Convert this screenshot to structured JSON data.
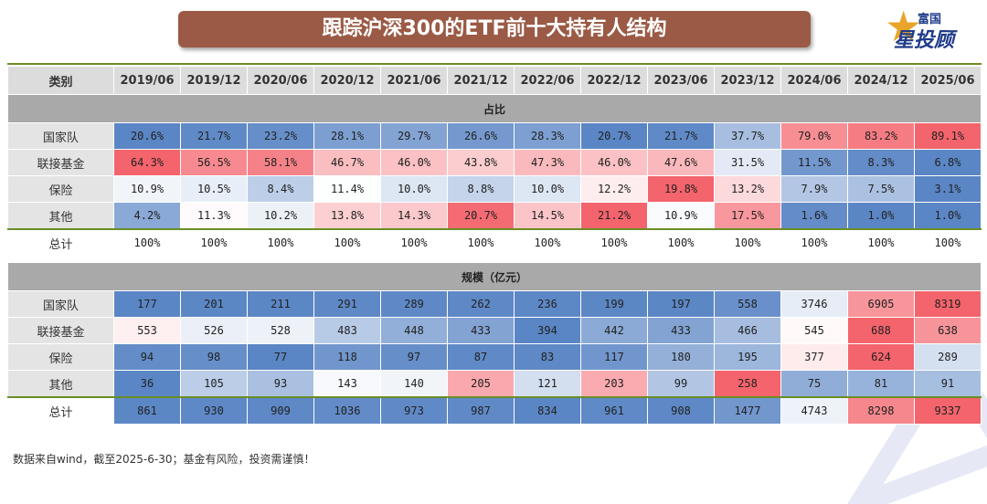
{
  "title": "跟踪沪深300的ETF前十大持有人结构",
  "logo": {
    "line1": "富国",
    "line2": "星投顾",
    "icon": "star-icon"
  },
  "columns": [
    "类别",
    "2019/06",
    "2019/12",
    "2020/06",
    "2020/12",
    "2021/06",
    "2021/12",
    "2022/06",
    "2022/12",
    "2023/06",
    "2023/12",
    "2024/06",
    "2024/12",
    "2025/06"
  ],
  "share_section": {
    "title": "占比",
    "rows": [
      {
        "label": "国家队",
        "values": [
          "20.6%",
          "21.7%",
          "23.2%",
          "28.1%",
          "29.7%",
          "26.6%",
          "28.3%",
          "20.7%",
          "21.7%",
          "37.7%",
          "79.0%",
          "83.2%",
          "89.1%"
        ]
      },
      {
        "label": "联接基金",
        "values": [
          "64.3%",
          "56.5%",
          "58.1%",
          "46.7%",
          "46.0%",
          "43.8%",
          "47.3%",
          "46.0%",
          "47.6%",
          "31.5%",
          "11.5%",
          "8.3%",
          "6.8%"
        ]
      },
      {
        "label": "保险",
        "values": [
          "10.9%",
          "10.5%",
          "8.4%",
          "11.4%",
          "10.0%",
          "8.8%",
          "10.0%",
          "12.2%",
          "19.8%",
          "13.2%",
          "7.9%",
          "7.5%",
          "3.1%"
        ]
      },
      {
        "label": "其他",
        "values": [
          "4.2%",
          "11.3%",
          "10.2%",
          "13.8%",
          "14.3%",
          "20.7%",
          "14.5%",
          "21.2%",
          "10.9%",
          "17.5%",
          "1.6%",
          "1.0%",
          "1.0%"
        ]
      }
    ],
    "total": {
      "label": "总计",
      "values": [
        "100%",
        "100%",
        "100%",
        "100%",
        "100%",
        "100%",
        "100%",
        "100%",
        "100%",
        "100%",
        "100%",
        "100%",
        "100%"
      ]
    }
  },
  "scale_section": {
    "title": "规模（亿元）",
    "rows": [
      {
        "label": "国家队",
        "values": [
          "177",
          "201",
          "211",
          "291",
          "289",
          "262",
          "236",
          "199",
          "197",
          "558",
          "3746",
          "6905",
          "8319"
        ]
      },
      {
        "label": "联接基金",
        "values": [
          "553",
          "526",
          "528",
          "483",
          "448",
          "433",
          "394",
          "442",
          "433",
          "466",
          "545",
          "688",
          "638"
        ]
      },
      {
        "label": "保险",
        "values": [
          "94",
          "98",
          "77",
          "118",
          "97",
          "87",
          "83",
          "117",
          "180",
          "195",
          "377",
          "624",
          "289"
        ]
      },
      {
        "label": "其他",
        "values": [
          "36",
          "105",
          "93",
          "143",
          "140",
          "205",
          "121",
          "203",
          "99",
          "258",
          "75",
          "81",
          "91"
        ]
      }
    ],
    "total": {
      "label": "总计",
      "values": [
        "861",
        "930",
        "909",
        "1036",
        "973",
        "987",
        "834",
        "961",
        "908",
        "1477",
        "4743",
        "8298",
        "9337"
      ]
    }
  },
  "footer": "数据来自wind，截至2025-6-30；基金有风险，投资需谨慎！",
  "colors": {
    "title_bg": "#9b5a45",
    "high": "#f4646c",
    "low": "#5b86c5",
    "mid": "#ffffff",
    "accent_line": "#6b8e23"
  }
}
